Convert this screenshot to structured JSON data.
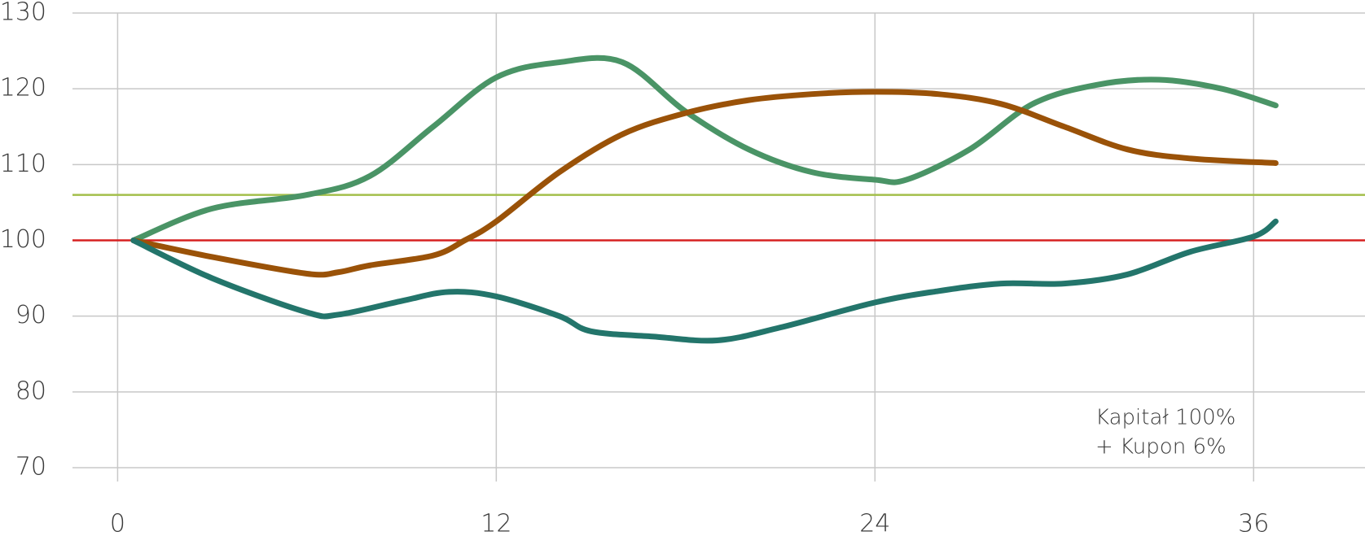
{
  "chart_data": {
    "type": "line",
    "xlim": [
      -1.43,
      39.53
    ],
    "ylim": [
      70,
      130
    ],
    "xticks": [
      0,
      12,
      24,
      36
    ],
    "yticks": [
      70,
      80,
      90,
      100,
      110,
      120,
      130
    ],
    "grid": true,
    "reference_lines": [
      {
        "value": 106,
        "color": "#a3bf4a"
      },
      {
        "value": 100,
        "color": "#d62020"
      }
    ],
    "annotation": [
      "Kapitał 100%",
      "+ Kupon 6%"
    ],
    "series": [
      {
        "color": "#4a9466",
        "x": [
          0.5,
          3,
          6,
          8,
          10,
          12,
          14,
          16,
          18,
          20,
          22,
          24,
          25,
          27,
          29,
          31,
          33,
          35,
          36.7
        ],
        "values": [
          100,
          104.2,
          106,
          108.5,
          115,
          121.5,
          123.5,
          123.5,
          117,
          112,
          109,
          108,
          108,
          112,
          118,
          120.5,
          121.2,
          120,
          117.8
        ]
      },
      {
        "color": "#9a5208",
        "x": [
          0.5,
          3,
          6,
          7,
          8,
          10,
          11,
          12,
          14,
          16,
          18,
          20,
          22,
          24,
          26,
          28,
          30,
          32,
          34,
          36.7
        ],
        "values": [
          100,
          97.8,
          95.6,
          95.8,
          96.7,
          98,
          100,
          102.5,
          109,
          114,
          116.8,
          118.5,
          119.3,
          119.6,
          119.3,
          118,
          115,
          112,
          110.8,
          110.2
        ]
      },
      {
        "color": "#23756b",
        "x": [
          0.5,
          3,
          6,
          7,
          9,
          10.5,
          12,
          14,
          15,
          17,
          19,
          21,
          24,
          26,
          28,
          30,
          32,
          34,
          36,
          36.7
        ],
        "values": [
          100,
          95,
          90.5,
          90.2,
          92,
          93.2,
          92.6,
          90,
          88,
          87.3,
          86.8,
          88.5,
          91.8,
          93.3,
          94.3,
          94.3,
          95.5,
          98.5,
          100.5,
          102.5
        ]
      }
    ]
  }
}
